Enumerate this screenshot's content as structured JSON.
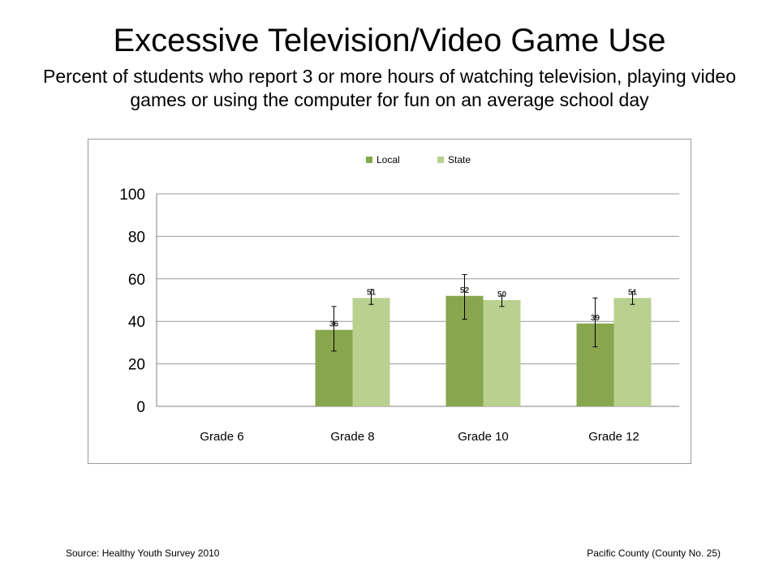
{
  "title": "Excessive Television/Video Game Use",
  "subtitle": "Percent of students who report 3 or more hours of watching television, playing video games or using the computer for fun on an average school day",
  "footer": {
    "source": "Source: Healthy Youth Survey 2010",
    "county": "Pacific County (County No. 25)"
  },
  "chart_data": {
    "type": "bar",
    "categories": [
      "Grade 6",
      "Grade 8",
      "Grade 10",
      "Grade 12"
    ],
    "ylim": [
      0,
      100
    ],
    "yticks": [
      0,
      20,
      40,
      60,
      80,
      100
    ],
    "grid": true,
    "legend_position": "top",
    "series": [
      {
        "name": "Local",
        "color": "#88a64e",
        "values": [
          null,
          36,
          52,
          39
        ],
        "labels": [
          "",
          "36",
          "52",
          "39"
        ],
        "error_low": [
          null,
          26,
          41,
          28
        ],
        "error_high": [
          null,
          47,
          62,
          51
        ]
      },
      {
        "name": "State",
        "color": "#b9d08f",
        "values": [
          null,
          51,
          50,
          51
        ],
        "labels": [
          "",
          "51",
          "50",
          "51"
        ],
        "error_low": [
          null,
          48,
          47,
          48
        ],
        "error_high": [
          null,
          55,
          52,
          54
        ]
      }
    ]
  }
}
